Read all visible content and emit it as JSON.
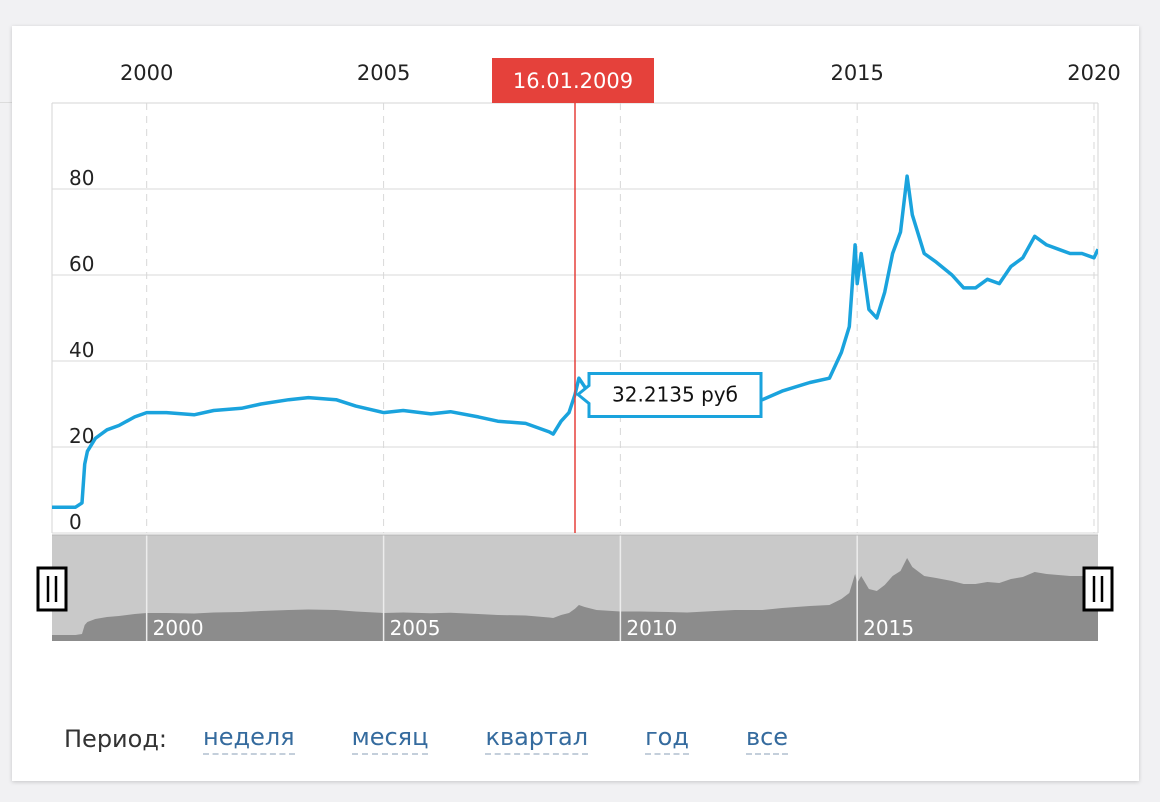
{
  "period": {
    "label": "Период:",
    "options": [
      "неделя",
      "месяц",
      "квартал",
      "год",
      "все"
    ]
  },
  "colors": {
    "line": "#1aa3dd",
    "cursor": "#e5413b",
    "navigator_fill": "#8c8c8c",
    "navigator_bg": "#c9c9c9",
    "link": "#356b9e"
  },
  "cursor": {
    "date_label": "16.01.2009",
    "value_label": "32.2135 руб"
  },
  "navigator": {
    "x_ticks": [
      "2000",
      "2005",
      "2010",
      "2015"
    ]
  },
  "chart_data": {
    "type": "line",
    "title": "",
    "xlabel": "",
    "ylabel": "",
    "x_ticks": [
      "2000",
      "2005",
      "2010",
      "2015",
      "2020"
    ],
    "y_ticks": [
      0,
      20,
      40,
      60,
      80
    ],
    "xlim": [
      "1998-01-01",
      "2020-02-01"
    ],
    "ylim": [
      0,
      100
    ],
    "grid": true,
    "legend": "none",
    "series": [
      {
        "name": "",
        "x": [
          "1998-01-01",
          "1998-07-01",
          "1998-08-20",
          "1998-09-10",
          "1998-10-01",
          "1998-12-01",
          "1999-03-01",
          "1999-06-01",
          "1999-10-01",
          "2000-01-01",
          "2000-06-01",
          "2001-01-01",
          "2001-06-01",
          "2002-01-01",
          "2002-06-01",
          "2003-01-01",
          "2003-06-01",
          "2004-01-01",
          "2004-06-01",
          "2005-01-01",
          "2005-06-01",
          "2006-01-01",
          "2006-06-01",
          "2007-01-01",
          "2007-06-01",
          "2008-01-01",
          "2008-04-01",
          "2008-07-01",
          "2008-08-01",
          "2008-10-01",
          "2008-12-01",
          "2009-01-16",
          "2009-02-15",
          "2009-04-01",
          "2009-07-01",
          "2010-01-01",
          "2010-06-01",
          "2011-01-01",
          "2011-06-01",
          "2012-01-01",
          "2012-06-01",
          "2013-01-01",
          "2013-06-01",
          "2014-01-01",
          "2014-06-01",
          "2014-09-01",
          "2014-11-01",
          "2014-12-16",
          "2015-01-01",
          "2015-02-01",
          "2015-04-01",
          "2015-06-01",
          "2015-08-01",
          "2015-10-01",
          "2015-12-01",
          "2016-01-21",
          "2016-03-01",
          "2016-06-01",
          "2016-09-01",
          "2017-01-01",
          "2017-04-01",
          "2017-07-01",
          "2017-10-01",
          "2018-01-01",
          "2018-04-01",
          "2018-07-01",
          "2018-10-01",
          "2019-01-01",
          "2019-04-01",
          "2019-07-01",
          "2019-10-01",
          "2020-01-01",
          "2020-02-01"
        ],
        "values": [
          6,
          6,
          7,
          16,
          19,
          22,
          24,
          25,
          27,
          28,
          28,
          27.5,
          28.5,
          29,
          30,
          31,
          31.5,
          31,
          29.5,
          28,
          28.5,
          27.7,
          28.2,
          27,
          26,
          25.5,
          24.5,
          23.5,
          23,
          26,
          28,
          32.2,
          36,
          34,
          31,
          29.5,
          29.5,
          29,
          28.5,
          30,
          31,
          31,
          33,
          35,
          36,
          42,
          48,
          67,
          58,
          65,
          52,
          50,
          56,
          65,
          70,
          83,
          74,
          65,
          63,
          60,
          57,
          57,
          59,
          58,
          62,
          64,
          69,
          67,
          66,
          65,
          65,
          64,
          66
        ]
      }
    ]
  }
}
